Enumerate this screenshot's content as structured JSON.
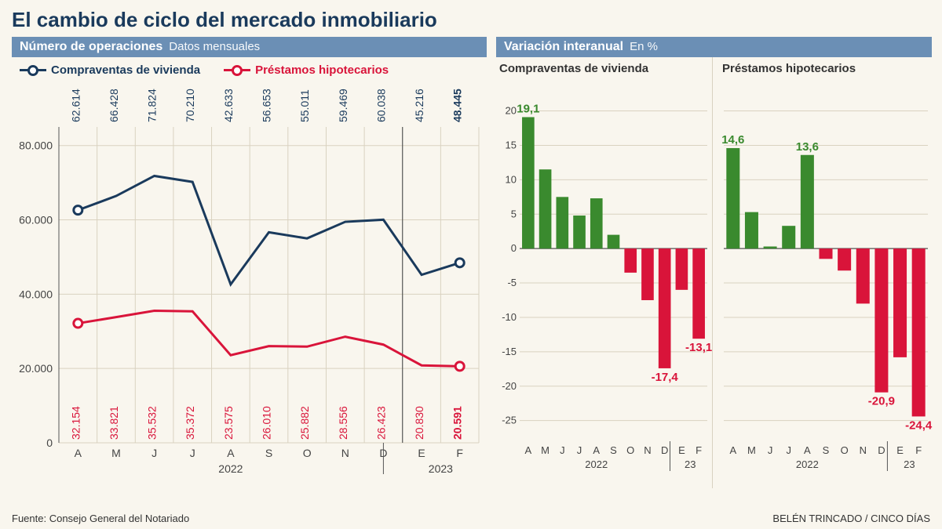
{
  "title": "El cambio de ciclo del mercado inmobiliario",
  "leftPanel": {
    "headerBold": "Número de operaciones",
    "headerSub": "Datos mensuales",
    "legend": {
      "series1": "Compraventas de vivienda",
      "series2": "Préstamos hipotecarios"
    },
    "chart": {
      "months": [
        "A",
        "M",
        "J",
        "J",
        "A",
        "S",
        "O",
        "N",
        "D",
        "E",
        "F"
      ],
      "yearLabels": [
        "2022",
        "2023"
      ],
      "yearSplit": 9,
      "yTicks": [
        0,
        20000,
        40000,
        60000,
        80000
      ],
      "yTickLabels": [
        "0",
        "20.000",
        "40.000",
        "60.000",
        "80.000"
      ],
      "ylim": [
        0,
        85000
      ],
      "series1": {
        "color": "#1a3a5c",
        "values": [
          62614,
          66428,
          71824,
          70210,
          42633,
          56653,
          55011,
          59469,
          60038,
          45216,
          48445
        ],
        "labels": [
          "62.614",
          "66.428",
          "71.824",
          "70.210",
          "42.633",
          "56.653",
          "55.011",
          "59.469",
          "60.038",
          "45.216",
          "48.445"
        ]
      },
      "series2": {
        "color": "#d9143a",
        "values": [
          32154,
          33821,
          35532,
          35372,
          23575,
          26010,
          25882,
          28556,
          26423,
          20830,
          20591
        ],
        "labels": [
          "32.154",
          "33.821",
          "35.532",
          "35.372",
          "23.575",
          "26.010",
          "25.882",
          "28.556",
          "26.423",
          "20.830",
          "20.591"
        ]
      },
      "gridColor": "#d9d2c0",
      "markerFill": "#ffffff",
      "markerStroke1": "#1a3a5c",
      "markerStroke2": "#d9143a",
      "lineWidth": 3,
      "markerR": 5.5,
      "label_fontsize": 14
    }
  },
  "rightPanel": {
    "headerBold": "Variación interanual",
    "headerSub": "En %",
    "chart": {
      "months": [
        "A",
        "M",
        "J",
        "J",
        "A",
        "S",
        "O",
        "N",
        "D",
        "E",
        "F"
      ],
      "yearLabels": [
        "2022",
        "23"
      ],
      "yearSplit": 9,
      "yTicks": [
        -25,
        -20,
        -15,
        -10,
        -5,
        0,
        5,
        10,
        15,
        20
      ],
      "ylim": [
        -28,
        22
      ],
      "posColor": "#3a8a2e",
      "negColor": "#d9143a",
      "gridColor": "#d9d2c0",
      "label_fontsize": 15,
      "sub1": {
        "title": "Compraventas de vivienda",
        "values": [
          19.1,
          11.5,
          7.5,
          4.8,
          7.3,
          2.0,
          -3.5,
          -7.5,
          -17.4,
          -6.0,
          -13.1
        ],
        "highlightFirst": "19,1",
        "highlightLabels": {
          "8": "-17,4",
          "10": "-13,1"
        }
      },
      "sub2": {
        "title": "Préstamos hipotecarios",
        "values": [
          14.6,
          5.3,
          0.3,
          3.3,
          13.6,
          -1.5,
          -3.2,
          -8.0,
          -20.9,
          -15.8,
          -24.4
        ],
        "highlightFirst": "14,6",
        "highlightTopLabels": {
          "4": "13,6"
        },
        "highlightLabels": {
          "8": "-20,9",
          "10": "-24,4"
        }
      }
    }
  },
  "footer": {
    "source": "Fuente: Consejo General del Notariado",
    "credit": "BELÉN TRINCADO / CINCO DÍAS"
  },
  "bg": "#f9f6ee"
}
